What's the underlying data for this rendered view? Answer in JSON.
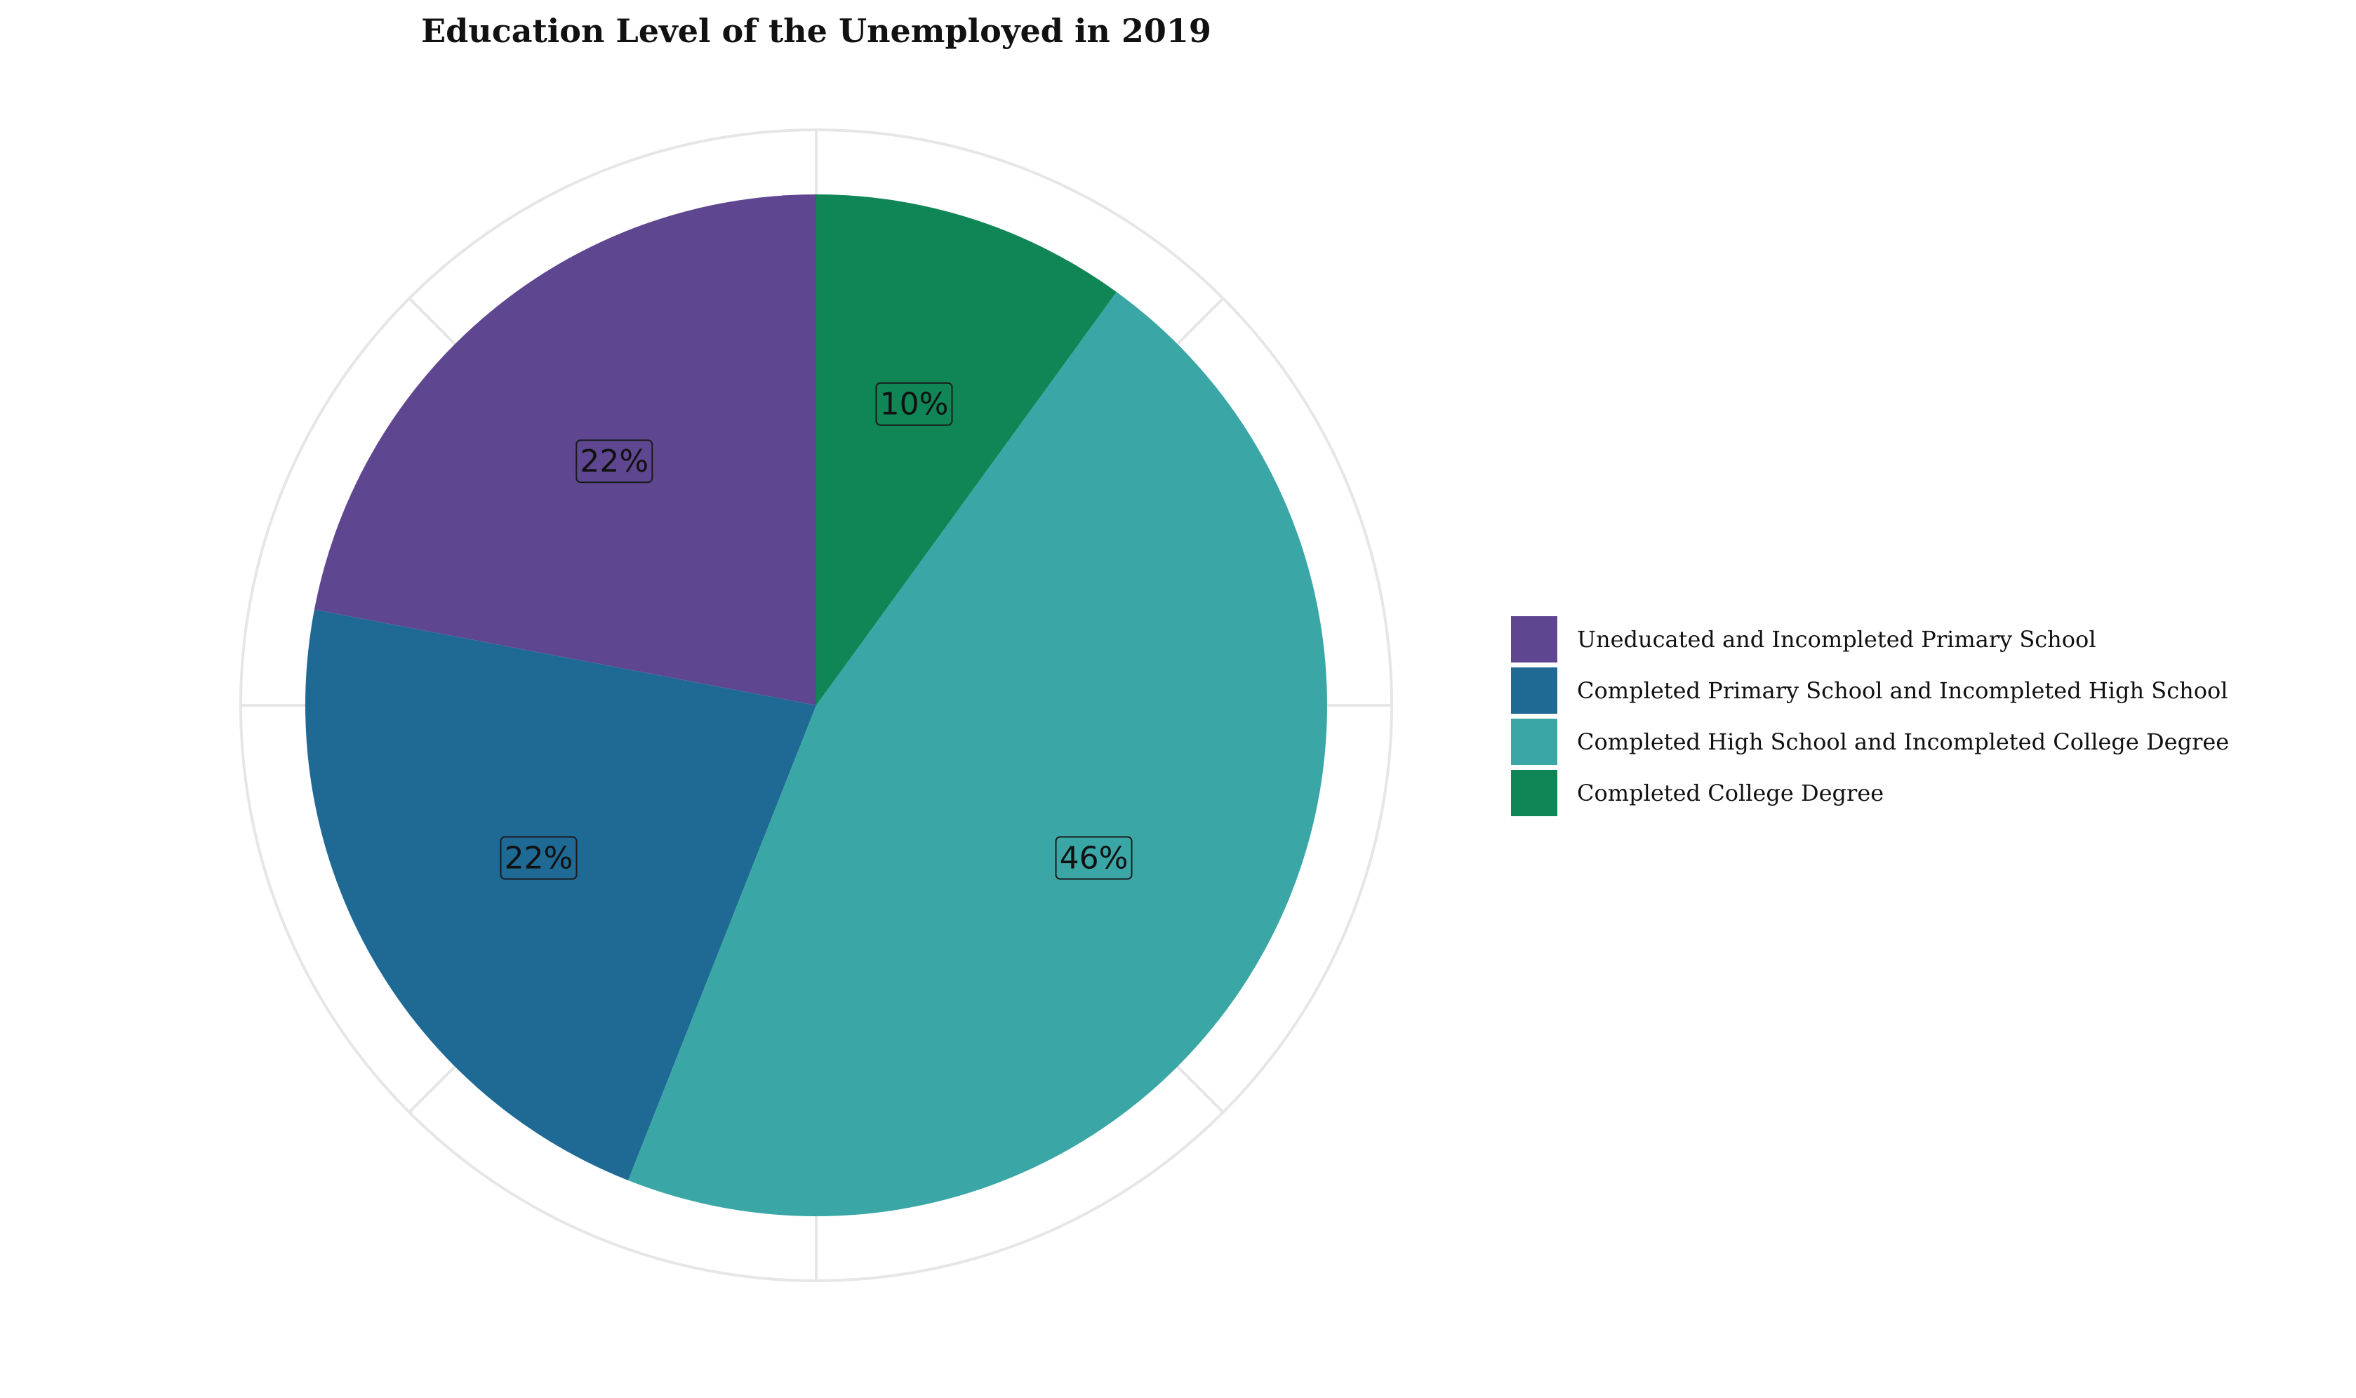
{
  "chart_data": {
    "type": "pie",
    "title": "Education Level of the Unemployed in 2019",
    "categories": [
      "Uneducated and Incompleted Primary School",
      "Completed Primary School and Incompleted High School",
      "Completed High School and Incompleted College Degree",
      "Completed College Degree"
    ],
    "values": [
      22,
      22,
      46,
      10
    ],
    "labels": [
      "22%",
      "22%",
      "46%",
      "10%"
    ],
    "colors": [
      "#5e4790",
      "#1f6995",
      "#3aa7a6",
      "#108656"
    ],
    "legend_position": "right",
    "direction": "counterclockwise",
    "start_angle": "12 o'clock",
    "grid": true
  }
}
